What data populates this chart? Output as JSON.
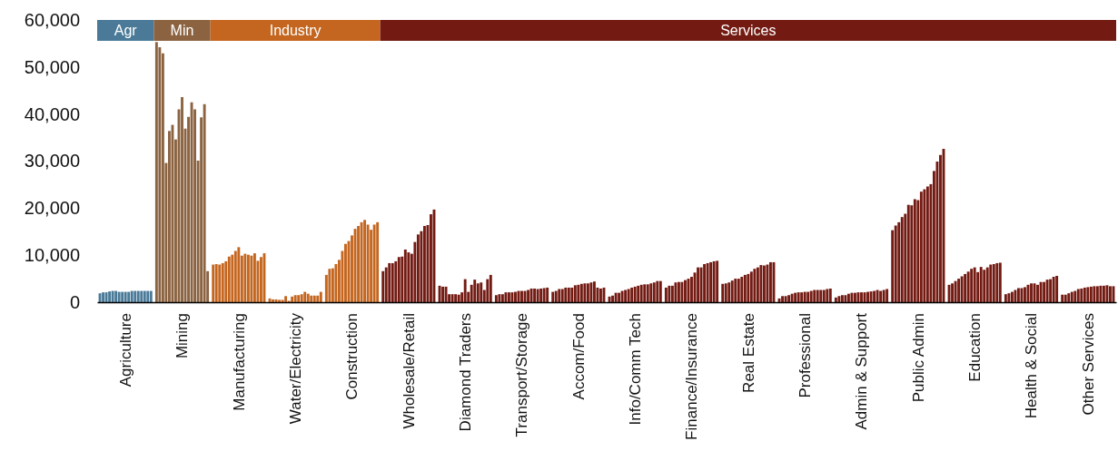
{
  "chart_data": {
    "type": "bar",
    "categories": [
      "Agriculture",
      "Mining",
      "Manufacturing",
      "Water/Electricity",
      "Construction",
      "Wholesale/Retail",
      "Diamond Traders",
      "Transport/Storage",
      "Accom/Food",
      "Info/Comm Tech",
      "Finance/Insurance",
      "Real Estate",
      "Professional",
      "Admin & Support",
      "Public Admin",
      "Education",
      "Health & Social",
      "Other Services"
    ],
    "series": [
      {
        "colors": [
          "#4a7a98",
          "#8b6341",
          "#c4661f",
          "#c4661f",
          "#c4661f",
          "#731b13",
          "#731b13",
          "#731b13",
          "#731b13",
          "#731b13",
          "#731b13",
          "#731b13",
          "#731b13",
          "#731b13",
          "#731b13",
          "#731b13",
          "#731b13",
          "#731b13"
        ],
        "values": [
          1900,
          55300,
          8000,
          800,
          5800,
          6600,
          3500,
          1500,
          2200,
          1200,
          3100,
          3900,
          800,
          1000,
          15300,
          3700,
          1700,
          1600
        ]
      },
      {
        "colors": [
          "#4a7a98",
          "#8b6341",
          "#c4661f",
          "#c4661f",
          "#c4661f",
          "#731b13",
          "#731b13",
          "#731b13",
          "#731b13",
          "#731b13",
          "#731b13",
          "#731b13",
          "#731b13",
          "#731b13",
          "#731b13",
          "#731b13",
          "#731b13",
          "#731b13"
        ],
        "values": [
          2100,
          54200,
          8100,
          600,
          7100,
          7400,
          3300,
          1700,
          2400,
          1400,
          3500,
          4000,
          1300,
          1300,
          16300,
          4000,
          1900,
          1600
        ]
      },
      {
        "colors": [
          "#4a7a98",
          "#8b6341",
          "#c4661f",
          "#c4661f",
          "#c4661f",
          "#731b13",
          "#731b13",
          "#731b13",
          "#731b13",
          "#731b13",
          "#731b13",
          "#731b13",
          "#731b13",
          "#731b13",
          "#731b13",
          "#731b13",
          "#731b13",
          "#731b13"
        ],
        "values": [
          2100,
          52900,
          8000,
          600,
          7200,
          8300,
          3300,
          1700,
          2800,
          2000,
          3500,
          4200,
          1300,
          1500,
          17000,
          4500,
          2200,
          1900
        ]
      },
      {
        "colors": [
          "#4a7a98",
          "#8b6341",
          "#c4661f",
          "#c4661f",
          "#c4661f",
          "#731b13",
          "#731b13",
          "#731b13",
          "#731b13",
          "#731b13",
          "#731b13",
          "#731b13",
          "#731b13",
          "#731b13",
          "#731b13",
          "#731b13",
          "#731b13",
          "#731b13"
        ],
        "values": [
          2300,
          29600,
          8300,
          500,
          8100,
          8300,
          1700,
          2100,
          2800,
          2000,
          4200,
          4600,
          1500,
          1500,
          18100,
          5000,
          2600,
          2200
        ]
      },
      {
        "colors": [
          "#4a7a98",
          "#8b6341",
          "#c4661f",
          "#c4661f",
          "#c4661f",
          "#731b13",
          "#731b13",
          "#731b13",
          "#731b13",
          "#731b13",
          "#731b13",
          "#731b13",
          "#731b13",
          "#731b13",
          "#731b13",
          "#731b13",
          "#731b13",
          "#731b13"
        ],
        "values": [
          2400,
          36400,
          8700,
          500,
          9000,
          8700,
          1700,
          2100,
          3100,
          2400,
          4300,
          5000,
          1800,
          1800,
          18800,
          5500,
          3000,
          2400
        ]
      },
      {
        "colors": [
          "#4a7a98",
          "#8b6341",
          "#c4661f",
          "#c4661f",
          "#c4661f",
          "#731b13",
          "#731b13",
          "#731b13",
          "#731b13",
          "#731b13",
          "#731b13",
          "#731b13",
          "#731b13",
          "#731b13",
          "#731b13",
          "#731b13",
          "#731b13",
          "#731b13"
        ],
        "values": [
          2400,
          37700,
          9700,
          1300,
          10900,
          9600,
          1700,
          2100,
          3100,
          2600,
          4300,
          5000,
          2000,
          2000,
          20700,
          6000,
          3000,
          2800
        ]
      },
      {
        "colors": [
          "#4a7a98",
          "#8b6341",
          "#c4661f",
          "#c4661f",
          "#c4661f",
          "#731b13",
          "#731b13",
          "#731b13",
          "#731b13",
          "#731b13",
          "#731b13",
          "#731b13",
          "#731b13",
          "#731b13",
          "#731b13",
          "#731b13",
          "#731b13",
          "#731b13"
        ],
        "values": [
          2200,
          34600,
          10100,
          300,
          12400,
          9700,
          1600,
          2200,
          3100,
          2800,
          4700,
          5400,
          2100,
          2000,
          20600,
          6500,
          3200,
          2900
        ]
      },
      {
        "colors": [
          "#4a7a98",
          "#8b6341",
          "#c4661f",
          "#c4661f",
          "#c4661f",
          "#731b13",
          "#731b13",
          "#731b13",
          "#731b13",
          "#731b13",
          "#731b13",
          "#731b13",
          "#731b13",
          "#731b13",
          "#731b13",
          "#731b13",
          "#731b13",
          "#731b13"
        ],
        "values": [
          2200,
          41000,
          10900,
          1200,
          13000,
          11200,
          2100,
          2400,
          3600,
          3100,
          5000,
          5800,
          2100,
          2100,
          21900,
          7100,
          3700,
          3100
        ]
      },
      {
        "colors": [
          "#4a7a98",
          "#8b6341",
          "#c4661f",
          "#c4661f",
          "#c4661f",
          "#731b13",
          "#731b13",
          "#731b13",
          "#731b13",
          "#731b13",
          "#731b13",
          "#731b13",
          "#731b13",
          "#731b13",
          "#731b13",
          "#731b13",
          "#731b13",
          "#731b13"
        ],
        "values": [
          2200,
          43600,
          11700,
          1500,
          14200,
          10600,
          4900,
          2400,
          3700,
          3300,
          5400,
          6000,
          2200,
          2100,
          21700,
          7400,
          4000,
          3200
        ]
      },
      {
        "colors": [
          "#4a7a98",
          "#8b6341",
          "#c4661f",
          "#c4661f",
          "#c4661f",
          "#731b13",
          "#731b13",
          "#731b13",
          "#731b13",
          "#731b13",
          "#731b13",
          "#731b13",
          "#731b13",
          "#731b13",
          "#731b13",
          "#731b13",
          "#731b13",
          "#731b13"
        ],
        "values": [
          2200,
          36900,
          9900,
          1500,
          15600,
          10300,
          2200,
          2400,
          3900,
          3500,
          6300,
          6500,
          2200,
          2100,
          23500,
          6400,
          4000,
          3300
        ]
      },
      {
        "colors": [
          "#4a7a98",
          "#8b6341",
          "#c4661f",
          "#c4661f",
          "#c4661f",
          "#731b13",
          "#731b13",
          "#731b13",
          "#731b13",
          "#731b13",
          "#731b13",
          "#731b13",
          "#731b13",
          "#731b13",
          "#731b13",
          "#731b13",
          "#731b13",
          "#731b13"
        ],
        "values": [
          2400,
          39400,
          10300,
          1700,
          16200,
          12800,
          3700,
          2600,
          4000,
          3700,
          7400,
          7100,
          2400,
          2200,
          24000,
          7500,
          3700,
          3400
        ]
      },
      {
        "colors": [
          "#4a7a98",
          "#8b6341",
          "#c4661f",
          "#c4661f",
          "#c4661f",
          "#731b13",
          "#731b13",
          "#731b13",
          "#731b13",
          "#731b13",
          "#731b13",
          "#731b13",
          "#731b13",
          "#731b13",
          "#731b13",
          "#731b13",
          "#731b13",
          "#731b13"
        ],
        "values": [
          2400,
          42500,
          10100,
          2200,
          17000,
          14400,
          4800,
          2900,
          4000,
          3800,
          7400,
          7400,
          2600,
          2300,
          24600,
          6900,
          4300,
          3400
        ]
      },
      {
        "colors": [
          "#4a7a98",
          "#8b6341",
          "#c4661f",
          "#c4661f",
          "#c4661f",
          "#731b13",
          "#731b13",
          "#731b13",
          "#731b13",
          "#731b13",
          "#731b13",
          "#731b13",
          "#731b13",
          "#731b13",
          "#731b13",
          "#731b13",
          "#731b13",
          "#731b13"
        ],
        "values": [
          2400,
          41000,
          9900,
          1800,
          17500,
          15100,
          4000,
          2900,
          4200,
          3800,
          8100,
          7900,
          2600,
          2400,
          25100,
          7400,
          4300,
          3500
        ]
      },
      {
        "colors": [
          "#4a7a98",
          "#8b6341",
          "#c4661f",
          "#c4661f",
          "#c4661f",
          "#731b13",
          "#731b13",
          "#731b13",
          "#731b13",
          "#731b13",
          "#731b13",
          "#731b13",
          "#731b13",
          "#731b13",
          "#731b13",
          "#731b13",
          "#731b13",
          "#731b13"
        ],
        "values": [
          2400,
          30100,
          10400,
          1400,
          16500,
          16200,
          4200,
          2800,
          4400,
          4000,
          8300,
          7800,
          2600,
          2600,
          27900,
          8000,
          4800,
          3500
        ]
      },
      {
        "colors": [
          "#4a7a98",
          "#8b6341",
          "#c4661f",
          "#c4661f",
          "#c4661f",
          "#731b13",
          "#731b13",
          "#731b13",
          "#731b13",
          "#731b13",
          "#731b13",
          "#731b13",
          "#731b13",
          "#731b13",
          "#731b13",
          "#731b13",
          "#731b13",
          "#731b13"
        ],
        "values": [
          2400,
          39300,
          8800,
          1400,
          15400,
          16400,
          2600,
          2900,
          3100,
          4200,
          8500,
          8000,
          2600,
          2400,
          29900,
          8100,
          4900,
          3600
        ]
      },
      {
        "colors": [
          "#4a7a98",
          "#8b6341",
          "#c4661f",
          "#c4661f",
          "#c4661f",
          "#731b13",
          "#731b13",
          "#731b13",
          "#731b13",
          "#731b13",
          "#731b13",
          "#731b13",
          "#731b13",
          "#731b13",
          "#731b13",
          "#731b13",
          "#731b13",
          "#731b13"
        ],
        "values": [
          2400,
          42100,
          9600,
          1400,
          16500,
          18700,
          4900,
          3000,
          2900,
          4500,
          8700,
          8500,
          2800,
          2600,
          31300,
          8300,
          5400,
          3400
        ]
      },
      {
        "colors": [
          "#4a7a98",
          "#8b6341",
          "#c4661f",
          "#c4661f",
          "#c4661f",
          "#731b13",
          "#731b13",
          "#731b13",
          "#731b13",
          "#731b13",
          "#731b13",
          "#731b13",
          "#731b13",
          "#731b13",
          "#731b13",
          "#731b13",
          "#731b13",
          "#731b13"
        ],
        "values": [
          2400,
          6600,
          10400,
          2200,
          17000,
          19700,
          5800,
          3100,
          3100,
          4500,
          8800,
          8500,
          2900,
          2800,
          32600,
          8400,
          5600,
          3400
        ]
      }
    ],
    "ylim": [
      0,
      60000
    ],
    "yticks": [
      0,
      {
        "value": 10000,
        "label": "10,000"
      },
      {
        "value": 20000,
        "label": "20,000"
      },
      {
        "value": 30000,
        "label": "30,000"
      },
      {
        "value": 40000,
        "label": "40,000"
      },
      {
        "value": 50000,
        "label": "50,000"
      },
      {
        "value": 60000,
        "label": "60,000"
      }
    ],
    "annotations": [
      "Agr",
      "Min",
      "Industry",
      "Services"
    ],
    "grid": false
  }
}
